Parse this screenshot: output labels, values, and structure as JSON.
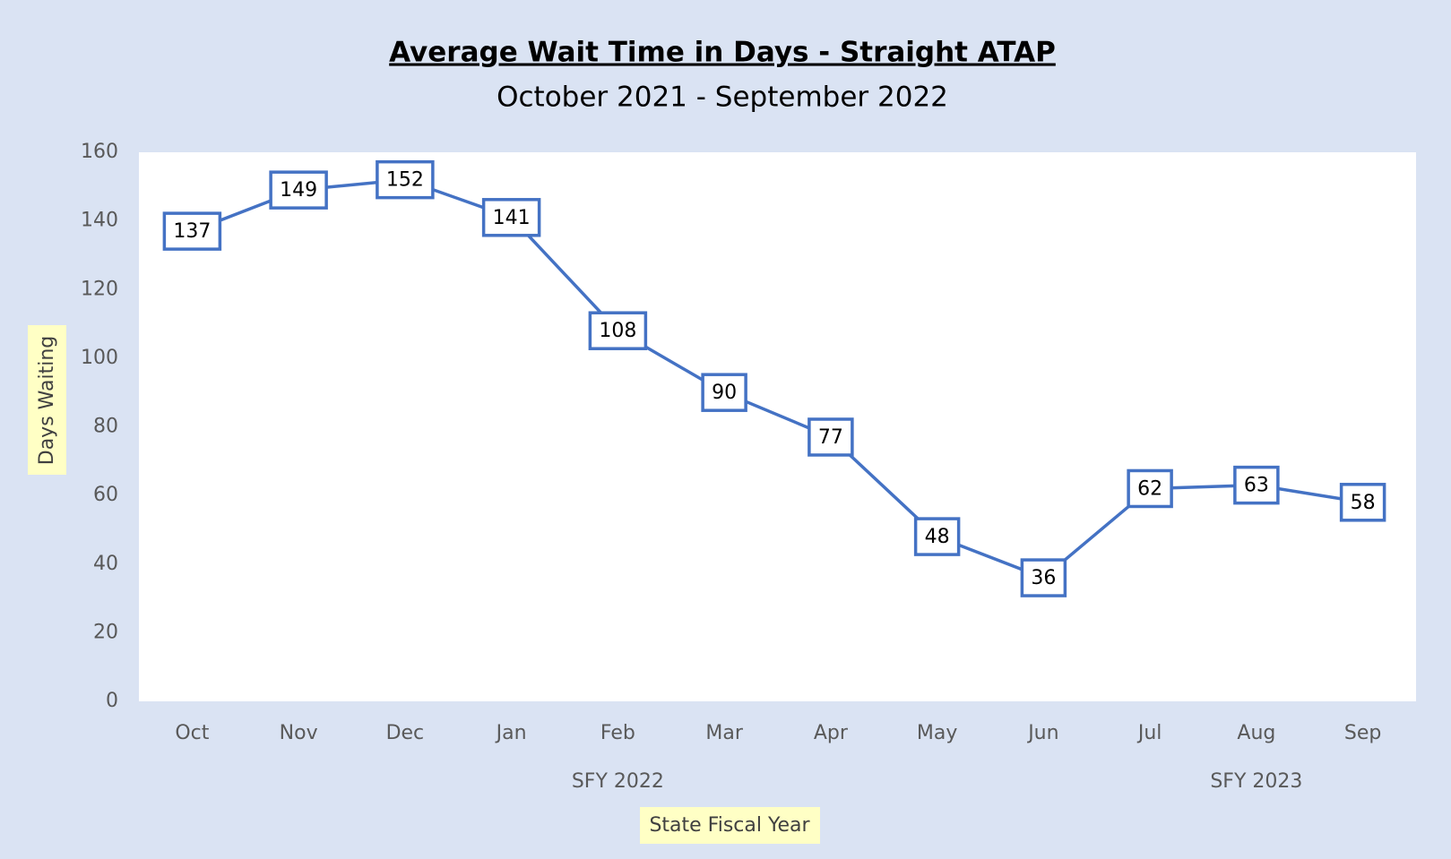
{
  "chart_data": {
    "type": "line",
    "title": "Average Wait Time in Days - Straight ATAP",
    "subtitle": "October 2021 - September 2022",
    "y_label": "Days Waiting",
    "x_label": "State Fiscal Year",
    "categories": [
      "Oct",
      "Nov",
      "Dec",
      "Jan",
      "Feb",
      "Mar",
      "Apr",
      "May",
      "Jun",
      "Jul",
      "Aug",
      "Sep"
    ],
    "category_groups": [
      {
        "label": "SFY 2022",
        "count": 9
      },
      {
        "label": "SFY 2023",
        "count": 3
      }
    ],
    "series": [
      {
        "name": "Days Waiting",
        "color": "#4472c4",
        "values": [
          137,
          149,
          152,
          141,
          108,
          90,
          77,
          48,
          36,
          62,
          63,
          58
        ]
      }
    ],
    "ylim": [
      0,
      160
    ],
    "yticks": [
      0,
      20,
      40,
      60,
      80,
      100,
      120,
      140,
      160
    ],
    "grid": false
  }
}
